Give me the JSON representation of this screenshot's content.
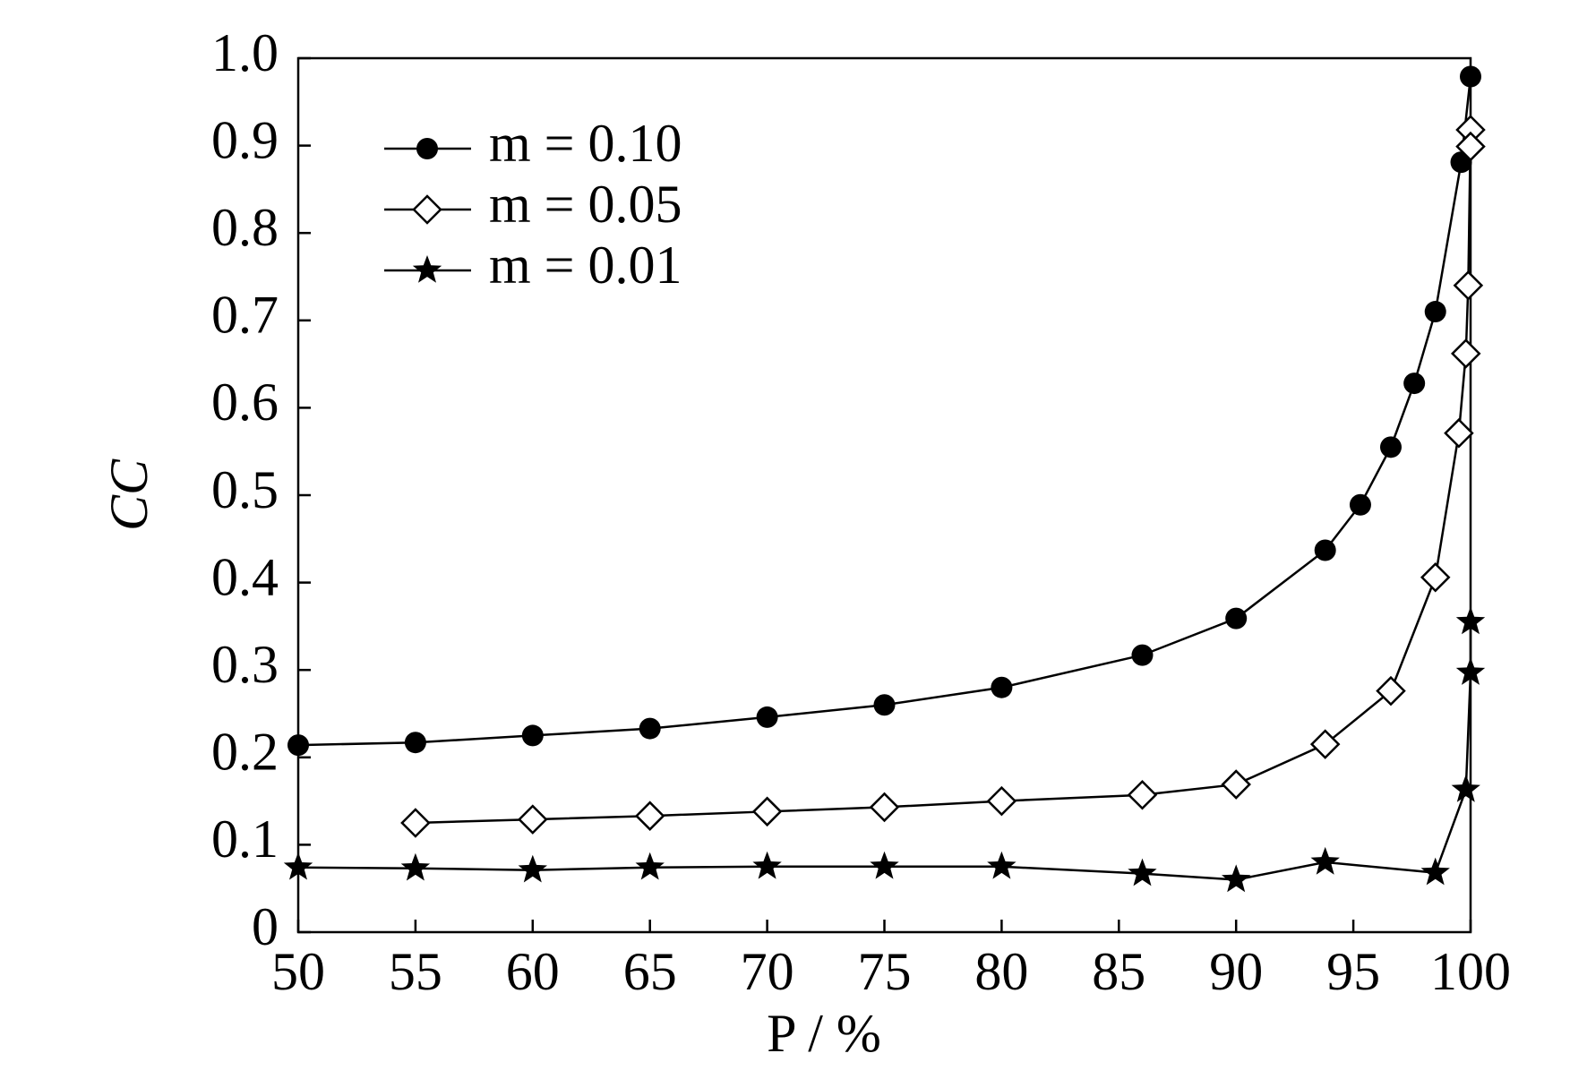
{
  "chart_data": {
    "type": "line",
    "xlabel": "P / %",
    "ylabel": "CC",
    "xlim": [
      50,
      100
    ],
    "ylim": [
      0,
      1
    ],
    "xticks": [
      50,
      55,
      60,
      65,
      70,
      75,
      80,
      85,
      90,
      95,
      100
    ],
    "yticks": [
      0,
      0.1,
      0.2,
      0.3,
      0.4,
      0.5,
      0.6,
      0.7,
      0.8,
      0.9,
      {
        "value": 1,
        "label": "1.0"
      }
    ],
    "grid": false,
    "legend": "upper left",
    "series": [
      {
        "name": "m = 0.10",
        "color": "#000000",
        "marker": "circle",
        "x": [
          50,
          55,
          60,
          65,
          70,
          75,
          80,
          86,
          90,
          93.8,
          95.3,
          96.6,
          97.6,
          98.5,
          99.6,
          100
        ],
        "values": [
          0.214,
          0.217,
          0.225,
          0.233,
          0.246,
          0.26,
          0.28,
          0.317,
          0.359,
          0.437,
          0.489,
          0.555,
          0.628,
          0.71,
          0.881,
          0.979
        ]
      },
      {
        "name": "m = 0.05",
        "color": "#000000",
        "marker": "diamond",
        "x": [
          55,
          60,
          65,
          70,
          75,
          80,
          86,
          90,
          93.8,
          96.6,
          98.5,
          99.5,
          99.8,
          99.9,
          100,
          100
        ],
        "values": [
          0.125,
          0.129,
          0.133,
          0.138,
          0.143,
          0.15,
          0.157,
          0.169,
          0.215,
          0.276,
          0.406,
          0.571,
          0.662,
          0.74,
          0.918,
          0.899
        ]
      },
      {
        "name": "m = 0.01",
        "color": "#000000",
        "marker": "star",
        "x": [
          50,
          55,
          60,
          65,
          70,
          75,
          80,
          86,
          90,
          93.8,
          98.5,
          99.8,
          100,
          100
        ],
        "values": [
          0.074,
          0.073,
          0.071,
          0.074,
          0.075,
          0.075,
          0.075,
          0.067,
          0.06,
          0.08,
          0.068,
          0.163,
          0.297,
          0.355
        ]
      }
    ]
  }
}
